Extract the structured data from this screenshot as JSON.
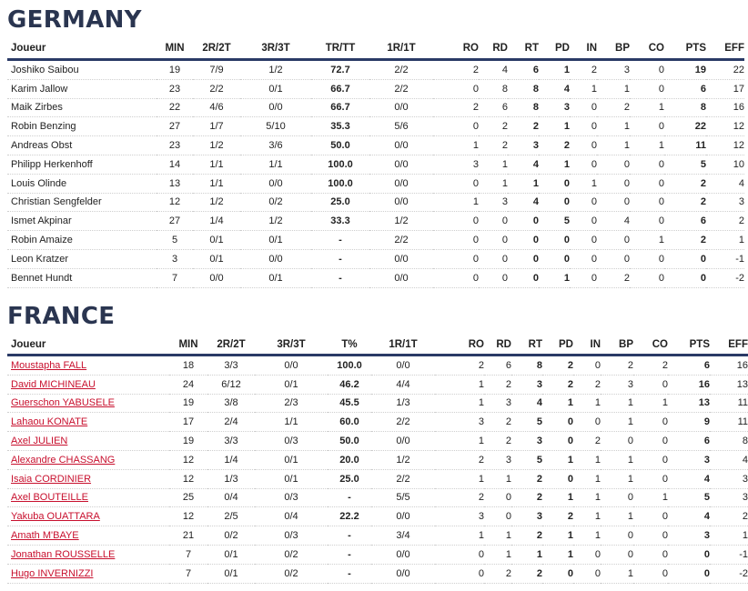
{
  "teams": [
    {
      "name": "GERMANY",
      "headers": [
        "Joueur",
        "MIN",
        "2R/2T",
        "3R/3T",
        "TR/TT",
        "1R/1T",
        "RO",
        "RD",
        "RT",
        "PD",
        "IN",
        "BP",
        "CO",
        "PTS",
        "EFF"
      ],
      "players_linked": false,
      "rows": [
        [
          "Joshiko Saibou",
          "19",
          "7/9",
          "1/2",
          "72.7",
          "2/2",
          "2",
          "4",
          "6",
          "1",
          "2",
          "3",
          "0",
          "19",
          "22"
        ],
        [
          "Karim Jallow",
          "23",
          "2/2",
          "0/1",
          "66.7",
          "2/2",
          "0",
          "8",
          "8",
          "4",
          "1",
          "1",
          "0",
          "6",
          "17"
        ],
        [
          "Maik Zirbes",
          "22",
          "4/6",
          "0/0",
          "66.7",
          "0/0",
          "2",
          "6",
          "8",
          "3",
          "0",
          "2",
          "1",
          "8",
          "16"
        ],
        [
          "Robin Benzing",
          "27",
          "1/7",
          "5/10",
          "35.3",
          "5/6",
          "0",
          "2",
          "2",
          "1",
          "0",
          "1",
          "0",
          "22",
          "12"
        ],
        [
          "Andreas Obst",
          "23",
          "1/2",
          "3/6",
          "50.0",
          "0/0",
          "1",
          "2",
          "3",
          "2",
          "0",
          "1",
          "1",
          "11",
          "12"
        ],
        [
          "Philipp Herkenhoff",
          "14",
          "1/1",
          "1/1",
          "100.0",
          "0/0",
          "3",
          "1",
          "4",
          "1",
          "0",
          "0",
          "0",
          "5",
          "10"
        ],
        [
          "Louis Olinde",
          "13",
          "1/1",
          "0/0",
          "100.0",
          "0/0",
          "0",
          "1",
          "1",
          "0",
          "1",
          "0",
          "0",
          "2",
          "4"
        ],
        [
          "Christian Sengfelder",
          "12",
          "1/2",
          "0/2",
          "25.0",
          "0/0",
          "1",
          "3",
          "4",
          "0",
          "0",
          "0",
          "0",
          "2",
          "3"
        ],
        [
          "Ismet Akpinar",
          "27",
          "1/4",
          "1/2",
          "33.3",
          "1/2",
          "0",
          "0",
          "0",
          "5",
          "0",
          "4",
          "0",
          "6",
          "2"
        ],
        [
          "Robin Amaize",
          "5",
          "0/1",
          "0/1",
          "-",
          "2/2",
          "0",
          "0",
          "0",
          "0",
          "0",
          "0",
          "1",
          "2",
          "1"
        ],
        [
          "Leon Kratzer",
          "3",
          "0/1",
          "0/0",
          "-",
          "0/0",
          "0",
          "0",
          "0",
          "0",
          "0",
          "0",
          "0",
          "0",
          "-1"
        ],
        [
          "Bennet Hundt",
          "7",
          "0/0",
          "0/1",
          "-",
          "0/0",
          "0",
          "0",
          "0",
          "1",
          "0",
          "2",
          "0",
          "0",
          "-2"
        ]
      ]
    },
    {
      "name": "FRANCE",
      "headers": [
        "Joueur",
        "MIN",
        "2R/2T",
        "3R/3T",
        "T%",
        "1R/1T",
        "RO",
        "RD",
        "RT",
        "PD",
        "IN",
        "BP",
        "CO",
        "PTS",
        "EFF"
      ],
      "players_linked": true,
      "rows": [
        [
          "Moustapha FALL",
          "18",
          "3/3",
          "0/0",
          "100.0",
          "0/0",
          "2",
          "6",
          "8",
          "2",
          "0",
          "2",
          "2",
          "6",
          "16"
        ],
        [
          "David MICHINEAU",
          "24",
          "6/12",
          "0/1",
          "46.2",
          "4/4",
          "1",
          "2",
          "3",
          "2",
          "2",
          "3",
          "0",
          "16",
          "13"
        ],
        [
          "Guerschon YABUSELE",
          "19",
          "3/8",
          "2/3",
          "45.5",
          "1/3",
          "1",
          "3",
          "4",
          "1",
          "1",
          "1",
          "1",
          "13",
          "11"
        ],
        [
          "Lahaou KONATE",
          "17",
          "2/4",
          "1/1",
          "60.0",
          "2/2",
          "3",
          "2",
          "5",
          "0",
          "0",
          "1",
          "0",
          "9",
          "11"
        ],
        [
          "Axel JULIEN",
          "19",
          "3/3",
          "0/3",
          "50.0",
          "0/0",
          "1",
          "2",
          "3",
          "0",
          "2",
          "0",
          "0",
          "6",
          "8"
        ],
        [
          "Alexandre CHASSANG",
          "12",
          "1/4",
          "0/1",
          "20.0",
          "1/2",
          "2",
          "3",
          "5",
          "1",
          "1",
          "1",
          "0",
          "3",
          "4"
        ],
        [
          "Isaia CORDINIER",
          "12",
          "1/3",
          "0/1",
          "25.0",
          "2/2",
          "1",
          "1",
          "2",
          "0",
          "1",
          "1",
          "0",
          "4",
          "3"
        ],
        [
          "Axel BOUTEILLE",
          "25",
          "0/4",
          "0/3",
          "-",
          "5/5",
          "2",
          "0",
          "2",
          "1",
          "1",
          "0",
          "1",
          "5",
          "3"
        ],
        [
          "Yakuba OUATTARA",
          "12",
          "2/5",
          "0/4",
          "22.2",
          "0/0",
          "3",
          "0",
          "3",
          "2",
          "1",
          "1",
          "0",
          "4",
          "2"
        ],
        [
          "Amath M'BAYE",
          "21",
          "0/2",
          "0/3",
          "-",
          "3/4",
          "1",
          "1",
          "2",
          "1",
          "1",
          "0",
          "0",
          "3",
          "1"
        ],
        [
          "Jonathan ROUSSELLE",
          "7",
          "0/1",
          "0/2",
          "-",
          "0/0",
          "0",
          "1",
          "1",
          "1",
          "0",
          "0",
          "0",
          "0",
          "-1"
        ],
        [
          "Hugo INVERNIZZI",
          "7",
          "0/1",
          "0/2",
          "-",
          "0/0",
          "0",
          "2",
          "2",
          "0",
          "0",
          "1",
          "0",
          "0",
          "-2"
        ]
      ]
    }
  ]
}
